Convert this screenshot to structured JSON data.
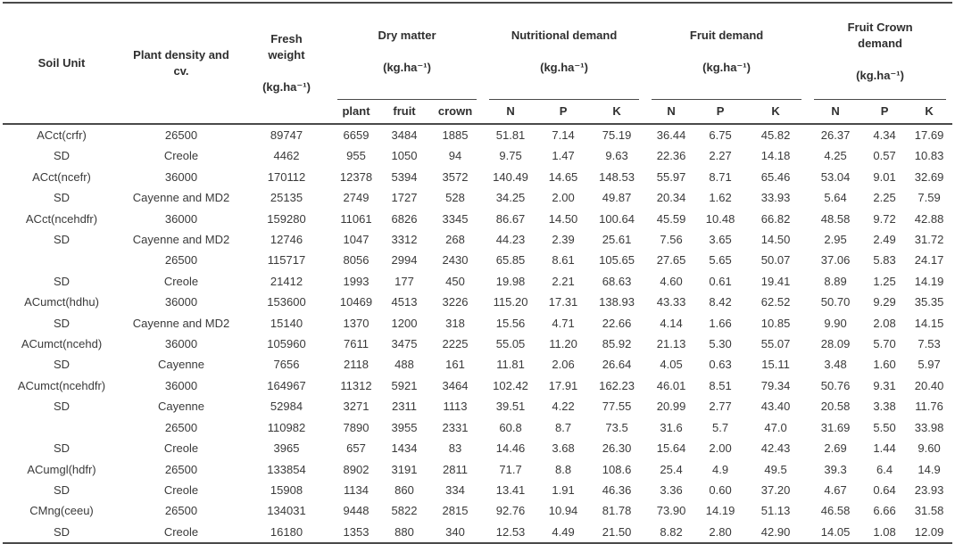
{
  "colors": {
    "text": "#3a3a3a",
    "header_text": "#2f2f2f",
    "rule_lines": "#4a4a4a",
    "background": "#ffffff"
  },
  "table": {
    "type": "table",
    "columns": {
      "soil_unit": "Soil Unit",
      "plant_density": "Plant density and\ncv.",
      "fresh_weight": {
        "name": "Fresh\nweight",
        "unit": "(kg.ha⁻¹)"
      },
      "groups": [
        {
          "name": "Dry matter",
          "unit": "(kg.ha⁻¹)",
          "subs": [
            "plant",
            "fruit",
            "crown"
          ]
        },
        {
          "name": "Nutritional demand",
          "unit": "(kg.ha⁻¹)",
          "subs": [
            "N",
            "P",
            "K"
          ]
        },
        {
          "name": "Fruit demand",
          "unit": "(kg.ha⁻¹)",
          "subs": [
            "N",
            "P",
            "K"
          ]
        },
        {
          "name": "Fruit Crown\ndemand",
          "unit": "(kg.ha⁻¹)",
          "subs": [
            "N",
            "P",
            "K"
          ]
        }
      ]
    },
    "rows": [
      [
        "ACct(crfr)",
        "26500",
        "89747",
        "6659",
        "3484",
        "1885",
        "51.81",
        "7.14",
        "75.19",
        "36.44",
        "6.75",
        "45.82",
        "26.37",
        "4.34",
        "17.69"
      ],
      [
        "SD",
        "Creole",
        "4462",
        "955",
        "1050",
        "94",
        "9.75",
        "1.47",
        "9.63",
        "22.36",
        "2.27",
        "14.18",
        "4.25",
        "0.57",
        "10.83"
      ],
      [
        "ACct(ncefr)",
        "36000",
        "170112",
        "12378",
        "5394",
        "3572",
        "140.49",
        "14.65",
        "148.53",
        "55.97",
        "8.71",
        "65.46",
        "53.04",
        "9.01",
        "32.69"
      ],
      [
        "SD",
        "Cayenne and MD2",
        "25135",
        "2749",
        "1727",
        "528",
        "34.25",
        "2.00",
        "49.87",
        "20.34",
        "1.62",
        "33.93",
        "5.64",
        "2.25",
        "7.59"
      ],
      [
        "ACct(ncehdfr)",
        "36000",
        "159280",
        "11061",
        "6826",
        "3345",
        "86.67",
        "14.50",
        "100.64",
        "45.59",
        "10.48",
        "66.82",
        "48.58",
        "9.72",
        "42.88"
      ],
      [
        "SD",
        "Cayenne and MD2",
        "12746",
        "1047",
        "3312",
        "268",
        "44.23",
        "2.39",
        "25.61",
        "7.56",
        "3.65",
        "14.50",
        "2.95",
        "2.49",
        "31.72"
      ],
      [
        "",
        "26500",
        "115717",
        "8056",
        "2994",
        "2430",
        "65.85",
        "8.61",
        "105.65",
        "27.65",
        "5.65",
        "50.07",
        "37.06",
        "5.83",
        "24.17"
      ],
      [
        "SD",
        "Creole",
        "21412",
        "1993",
        "177",
        "450",
        "19.98",
        "2.21",
        "68.63",
        "4.60",
        "0.61",
        "19.41",
        "8.89",
        "1.25",
        "14.19"
      ],
      [
        "ACumct(hdhu)",
        "36000",
        "153600",
        "10469",
        "4513",
        "3226",
        "115.20",
        "17.31",
        "138.93",
        "43.33",
        "8.42",
        "62.52",
        "50.70",
        "9.29",
        "35.35"
      ],
      [
        "SD",
        "Cayenne and MD2",
        "15140",
        "1370",
        "1200",
        "318",
        "15.56",
        "4.71",
        "22.66",
        "4.14",
        "1.66",
        "10.85",
        "9.90",
        "2.08",
        "14.15"
      ],
      [
        "ACumct(ncehd)",
        "36000",
        "105960",
        "7611",
        "3475",
        "2225",
        "55.05",
        "11.20",
        "85.92",
        "21.13",
        "5.30",
        "55.07",
        "28.09",
        "5.70",
        "7.53"
      ],
      [
        "SD",
        "Cayenne",
        "7656",
        "2118",
        "488",
        "161",
        "11.81",
        "2.06",
        "26.64",
        "4.05",
        "0.63",
        "15.11",
        "3.48",
        "1.60",
        "5.97"
      ],
      [
        "ACumct(ncehdfr)",
        "36000",
        "164967",
        "11312",
        "5921",
        "3464",
        "102.42",
        "17.91",
        "162.23",
        "46.01",
        "8.51",
        "79.34",
        "50.76",
        "9.31",
        "20.40"
      ],
      [
        "SD",
        "Cayenne",
        "52984",
        "3271",
        "2311",
        "1113",
        "39.51",
        "4.22",
        "77.55",
        "20.99",
        "2.77",
        "43.40",
        "20.58",
        "3.38",
        "11.76"
      ],
      [
        "",
        "26500",
        "110982",
        "7890",
        "3955",
        "2331",
        "60.8",
        "8.7",
        "73.5",
        "31.6",
        "5.7",
        "47.0",
        "31.69",
        "5.50",
        "33.98"
      ],
      [
        "SD",
        "Creole",
        "3965",
        "657",
        "1434",
        "83",
        "14.46",
        "3.68",
        "26.30",
        "15.64",
        "2.00",
        "42.43",
        "2.69",
        "1.44",
        "9.60"
      ],
      [
        "ACumgl(hdfr)",
        "26500",
        "133854",
        "8902",
        "3191",
        "2811",
        "71.7",
        "8.8",
        "108.6",
        "25.4",
        "4.9",
        "49.5",
        "39.3",
        "6.4",
        "14.9"
      ],
      [
        "SD",
        "Creole",
        "15908",
        "1134",
        "860",
        "334",
        "13.41",
        "1.91",
        "46.36",
        "3.36",
        "0.60",
        "37.20",
        "4.67",
        "0.64",
        "23.93"
      ],
      [
        "CMng(ceeu)",
        "26500",
        "134031",
        "9448",
        "5822",
        "2815",
        "92.76",
        "10.94",
        "81.78",
        "73.90",
        "14.19",
        "51.13",
        "46.58",
        "6.66",
        "31.58"
      ],
      [
        "SD",
        "Creole",
        "16180",
        "1353",
        "880",
        "340",
        "12.53",
        "4.49",
        "21.50",
        "8.82",
        "2.80",
        "42.90",
        "14.05",
        "1.08",
        "12.09"
      ]
    ]
  }
}
